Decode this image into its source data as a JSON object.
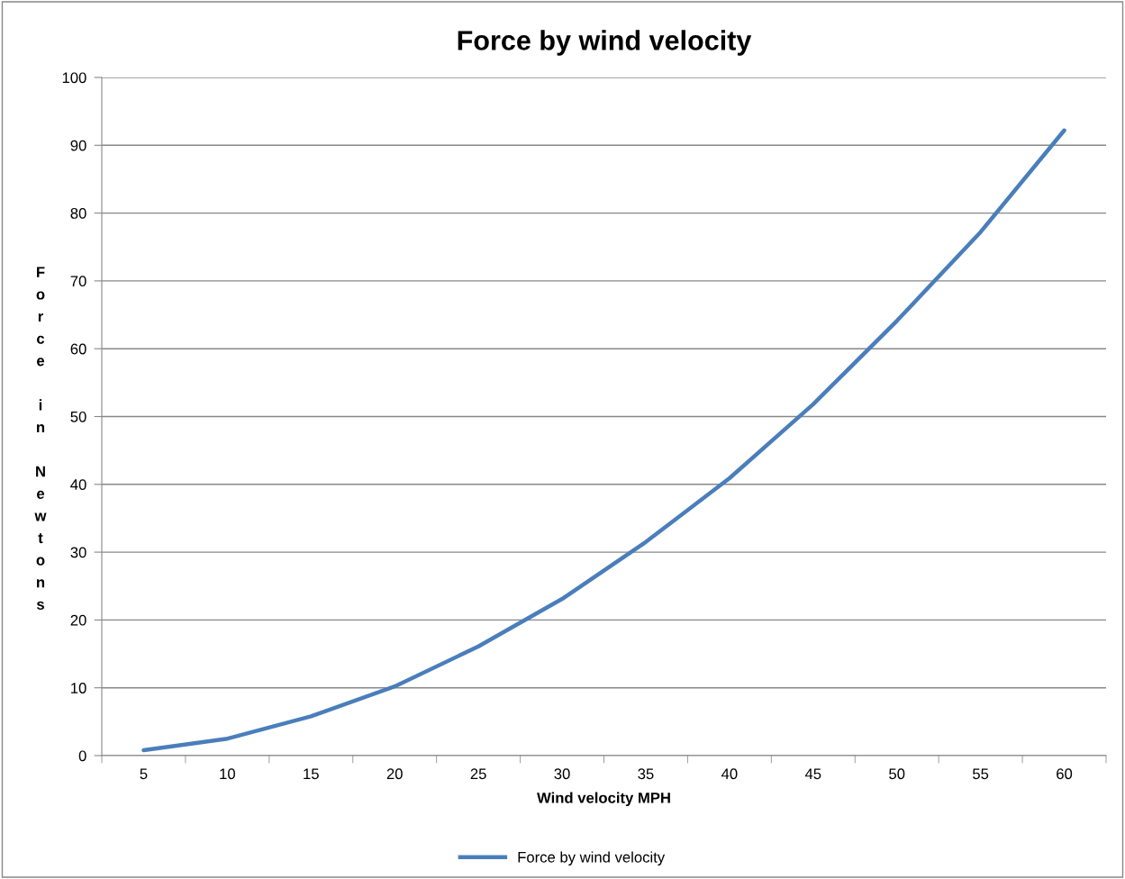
{
  "chart_data": {
    "type": "line",
    "title": "Force by wind velocity",
    "xlabel": "Wind velocity MPH",
    "ylabel": "Force in Newtons",
    "categories": [
      "5",
      "10",
      "15",
      "20",
      "25",
      "30",
      "35",
      "40",
      "45",
      "50",
      "55",
      "60"
    ],
    "series": [
      {
        "name": "Force by wind velocity",
        "color": "#4a7ebb",
        "values": [
          0.8,
          2.5,
          5.8,
          10.2,
          16.1,
          23.1,
          31.5,
          40.9,
          51.8,
          64.1,
          77.2,
          92.2
        ]
      }
    ],
    "ylim": [
      0,
      100
    ],
    "yticks": [
      0,
      10,
      20,
      30,
      40,
      50,
      60,
      70,
      80,
      90,
      100
    ],
    "grid": "y",
    "legend": "bottom",
    "marker": "none",
    "line_style": "solid"
  }
}
